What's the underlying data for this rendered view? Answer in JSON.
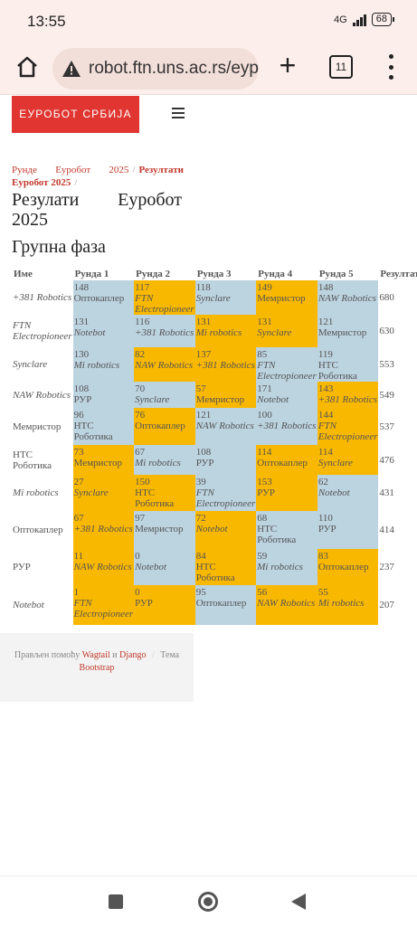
{
  "status_bar": {
    "time": "13:55",
    "network": "4G",
    "battery": "68"
  },
  "browser": {
    "url": "robot.ftn.uns.ac.rs/eyp",
    "tab_count": "11"
  },
  "site": {
    "brand": "ЕУРОБОТ СРБИЈА"
  },
  "breadcrumb": {
    "items": [
      "Рунде Еуробот 2025",
      "Резултати Еуробот 2025"
    ],
    "separator": "/"
  },
  "page_title": "Резулати Еуробот 2025",
  "section_title": "Групна фаза",
  "table": {
    "headers": [
      "Име",
      "Рунда 1",
      "Рунда 2",
      "Рунда 3",
      "Рунда 4",
      "Рунда 5",
      "Резултат"
    ],
    "rows": [
      {
        "name": "+381 Robotics",
        "italic": true,
        "score": "680",
        "rounds": [
          {
            "points": "148",
            "opponent": "Оптокаплер",
            "italic": false,
            "win": false
          },
          {
            "points": "117",
            "opponent": "FTN Electropioneer",
            "italic": true,
            "win": true
          },
          {
            "points": "118",
            "opponent": "Synclare",
            "italic": true,
            "win": false
          },
          {
            "points": "149",
            "opponent": "Мемристор",
            "italic": false,
            "win": true
          },
          {
            "points": "148",
            "opponent": "NAW Robotics",
            "italic": true,
            "win": false
          }
        ]
      },
      {
        "name": "FTN Electropioneer",
        "italic": true,
        "score": "630",
        "rounds": [
          {
            "points": "131",
            "opponent": "Notebot",
            "italic": true,
            "win": false
          },
          {
            "points": "116",
            "opponent": "+381 Robotics",
            "italic": true,
            "win": false
          },
          {
            "points": "131",
            "opponent": "Mi robotics",
            "italic": true,
            "win": true
          },
          {
            "points": "131",
            "opponent": "Synclare",
            "italic": true,
            "win": true
          },
          {
            "points": "121",
            "opponent": "Мемристор",
            "italic": false,
            "win": false
          }
        ]
      },
      {
        "name": "Synclare",
        "italic": true,
        "score": "553",
        "rounds": [
          {
            "points": "130",
            "opponent": "Mi robotics",
            "italic": true,
            "win": false
          },
          {
            "points": "82",
            "opponent": "NAW Robotics",
            "italic": true,
            "win": true
          },
          {
            "points": "137",
            "opponent": "+381 Robotics",
            "italic": true,
            "win": true
          },
          {
            "points": "85",
            "opponent": "FTN Electropioneer",
            "italic": true,
            "win": false
          },
          {
            "points": "119",
            "opponent": "НТС Роботика",
            "italic": false,
            "win": false
          }
        ]
      },
      {
        "name": "NAW Robotics",
        "italic": true,
        "score": "549",
        "rounds": [
          {
            "points": "108",
            "opponent": "РУР",
            "italic": false,
            "win": false
          },
          {
            "points": "70",
            "opponent": "Synclare",
            "italic": true,
            "win": false
          },
          {
            "points": "57",
            "opponent": "Мемристор",
            "italic": false,
            "win": true
          },
          {
            "points": "171",
            "opponent": "Notebot",
            "italic": true,
            "win": false
          },
          {
            "points": "143",
            "opponent": "+381 Robotics",
            "italic": true,
            "win": true
          }
        ]
      },
      {
        "name": "Мемристор",
        "italic": false,
        "score": "537",
        "rounds": [
          {
            "points": "96",
            "opponent": "НТС Роботика",
            "italic": false,
            "win": false
          },
          {
            "points": "76",
            "opponent": "Оптокаплер",
            "italic": false,
            "win": true
          },
          {
            "points": "121",
            "opponent": "NAW Robotics",
            "italic": true,
            "win": false
          },
          {
            "points": "100",
            "opponent": "+381 Robotics",
            "italic": true,
            "win": false
          },
          {
            "points": "144",
            "opponent": "FTN Electropioneer",
            "italic": true,
            "win": true
          }
        ]
      },
      {
        "name": "НТС Роботика",
        "italic": false,
        "score": "476",
        "rounds": [
          {
            "points": "73",
            "opponent": "Мемристор",
            "italic": false,
            "win": true
          },
          {
            "points": "67",
            "opponent": "Mi robotics",
            "italic": true,
            "win": false
          },
          {
            "points": "108",
            "opponent": "РУР",
            "italic": false,
            "win": false
          },
          {
            "points": "114",
            "opponent": "Оптокаплер",
            "italic": false,
            "win": true
          },
          {
            "points": "114",
            "opponent": "Synclare",
            "italic": true,
            "win": true
          }
        ]
      },
      {
        "name": "Mi robotics",
        "italic": true,
        "score": "431",
        "rounds": [
          {
            "points": "27",
            "opponent": "Synclare",
            "italic": true,
            "win": true
          },
          {
            "points": "150",
            "opponent": "НТС Роботика",
            "italic": false,
            "win": true
          },
          {
            "points": "39",
            "opponent": "FTN Electropioneer",
            "italic": true,
            "win": false
          },
          {
            "points": "153",
            "opponent": "РУР",
            "italic": false,
            "win": true
          },
          {
            "points": "62",
            "opponent": "Notebot",
            "italic": true,
            "win": false
          }
        ]
      },
      {
        "name": "Оптокаплер",
        "italic": false,
        "score": "414",
        "rounds": [
          {
            "points": "67",
            "opponent": "+381 Robotics",
            "italic": true,
            "win": true
          },
          {
            "points": "97",
            "opponent": "Мемристор",
            "italic": false,
            "win": false
          },
          {
            "points": "72",
            "opponent": "Notebot",
            "italic": true,
            "win": true
          },
          {
            "points": "68",
            "opponent": "НТС Роботика",
            "italic": false,
            "win": false
          },
          {
            "points": "110",
            "opponent": "РУР",
            "italic": false,
            "win": false
          }
        ]
      },
      {
        "name": "РУР",
        "italic": false,
        "score": "237",
        "rounds": [
          {
            "points": "11",
            "opponent": "NAW Robotics",
            "italic": true,
            "win": true
          },
          {
            "points": "0",
            "opponent": "Notebot",
            "italic": true,
            "win": false
          },
          {
            "points": "84",
            "opponent": "НТС Роботика",
            "italic": false,
            "win": true
          },
          {
            "points": "59",
            "opponent": "Mi robotics",
            "italic": true,
            "win": false
          },
          {
            "points": "83",
            "opponent": "Оптокаплер",
            "italic": false,
            "win": true
          }
        ]
      },
      {
        "name": "Notebot",
        "italic": true,
        "score": "207",
        "rounds": [
          {
            "points": "1",
            "opponent": "FTN Electropioneer",
            "italic": true,
            "win": true
          },
          {
            "points": "0",
            "opponent": "РУР",
            "italic": false,
            "win": true
          },
          {
            "points": "95",
            "opponent": "Оптокаплер",
            "italic": false,
            "win": false
          },
          {
            "points": "56",
            "opponent": "NAW Robotics",
            "italic": true,
            "win": true
          },
          {
            "points": "55",
            "opponent": "Mi robotics",
            "italic": true,
            "win": true
          }
        ]
      }
    ]
  },
  "footer": {
    "made_with": "Прављен помоћу",
    "wagtail": "Wagtail",
    "and": "и",
    "django": "Django",
    "theme": "Тема",
    "bootstrap": "Bootstrap"
  },
  "colors": {
    "win": "#f9b800",
    "lose": "#bcd3e0",
    "brand": "#e03530"
  },
  "icons": {
    "home": "home-icon",
    "warning": "warning-icon",
    "new_tab": "plus-icon",
    "menu": "more-vert-icon"
  }
}
